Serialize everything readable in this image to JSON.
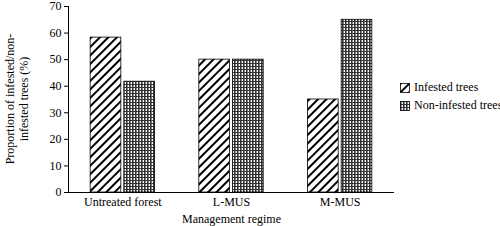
{
  "chart_data": {
    "type": "bar",
    "categories": [
      "Untreated forest",
      "L-MUS",
      "M-MUS"
    ],
    "xlabel": "Management regime",
    "ylabel": "Proportion of infested/non-infested trees (%)",
    "series": [
      {
        "name": "Infested trees",
        "color": "#000000",
        "values": [
          58.3,
          50,
          35
        ]
      },
      {
        "name": "Non-infested trees",
        "color": "#333333",
        "values": [
          41.7,
          50,
          65
        ]
      }
    ],
    "ylim": [
      0,
      70
    ],
    "yticks": [
      0,
      10,
      20,
      30,
      40,
      50,
      60,
      70
    ],
    "legend": "right"
  }
}
